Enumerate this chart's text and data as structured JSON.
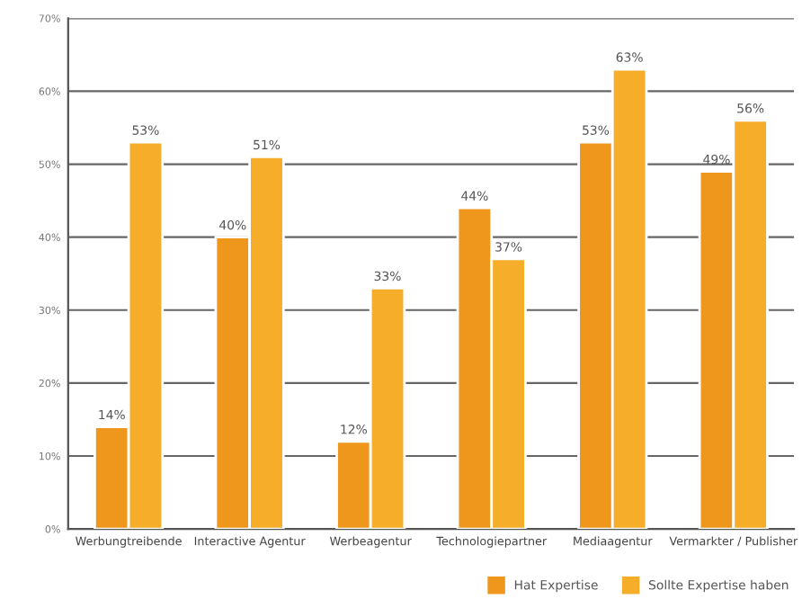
{
  "chart_data": {
    "type": "bar",
    "categories": [
      "Werbungtreibende",
      "Interactive Agentur",
      "Werbeagentur",
      "Technologiepartner",
      "Mediaagentur",
      "Vermarkter / Publisher"
    ],
    "series": [
      {
        "name": "Hat Expertise",
        "color": "#ef961c",
        "values": [
          14,
          40,
          12,
          44,
          53,
          49
        ],
        "value_labels": [
          "14%",
          "40%",
          "12%",
          "44%",
          "53%",
          "49%"
        ]
      },
      {
        "name": "Sollte Expertise haben",
        "color": "#f5ad2a",
        "values": [
          53,
          51,
          33,
          37,
          63,
          56
        ],
        "value_labels": [
          "53%",
          "51%",
          "33%",
          "37%",
          "63%",
          "56%"
        ]
      }
    ],
    "ylim": [
      0,
      70
    ],
    "yticks": [
      {
        "value": 0,
        "label": "0%"
      },
      {
        "value": 10,
        "label": "10%"
      },
      {
        "value": 20,
        "label": "20%"
      },
      {
        "value": 30,
        "label": "30%"
      },
      {
        "value": 40,
        "label": "40%"
      },
      {
        "value": 50,
        "label": "50%"
      },
      {
        "value": 60,
        "label": "60%"
      },
      {
        "value": 70,
        "label": "70%"
      }
    ],
    "grid": "y",
    "legend": "bottom right"
  }
}
